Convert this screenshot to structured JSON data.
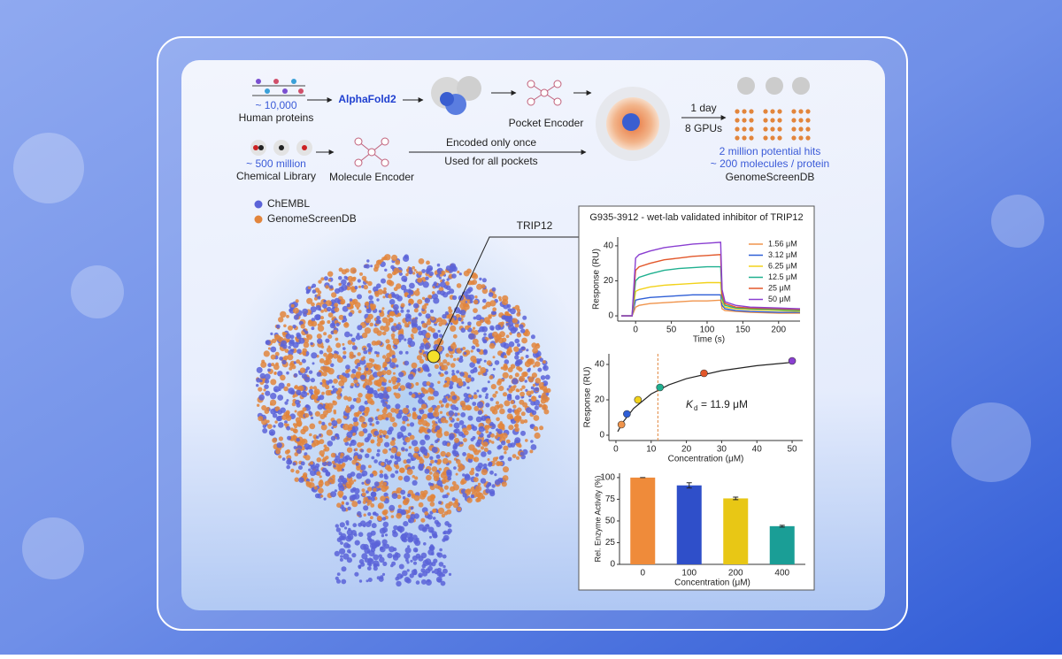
{
  "pipeline": {
    "protein_count": "~ 10,000",
    "protein_label": "Human proteins",
    "folding": "AlphaFold2",
    "pocket_encoder": "Pocket Encoder",
    "time": "1 day",
    "gpus": "8 GPUs",
    "library_count": "~ 500 million",
    "library_label": "Chemical Library",
    "molecule_encoder": "Molecule Encoder",
    "encode_note_1": "Encoded only once",
    "encode_note_2": "Used for all pockets",
    "hits": "2 million potential hits",
    "per_protein": "~ 200 molecules / protein",
    "database": "GenomeScreenDB"
  },
  "embedding": {
    "legend": [
      {
        "name": "ChEMBL",
        "color": "#5b63d8"
      },
      {
        "name": "GenomeScreenDB",
        "color": "#e2853c"
      }
    ],
    "highlight": "TRIP12"
  },
  "panel_title": "G935-3912 - wet-lab validated inhibitor of TRIP12",
  "chart_data": [
    {
      "type": "line",
      "xlabel": "Time (s)",
      "ylabel": "Response (RU)",
      "x": [
        -20,
        -5,
        0,
        5,
        20,
        40,
        60,
        80,
        100,
        119,
        121,
        125,
        140,
        160,
        200,
        230
      ],
      "series": [
        {
          "name": "1.56 μM",
          "color": "#f0944c",
          "values": [
            0,
            0,
            5,
            6,
            7,
            7.5,
            8,
            8.5,
            8.5,
            9,
            4,
            3,
            2.5,
            2,
            1.5,
            1.5
          ]
        },
        {
          "name": "3.12 μM",
          "color": "#2f5fd6",
          "values": [
            0,
            0,
            9,
            9.5,
            10.5,
            11,
            11.5,
            12,
            12,
            12,
            6,
            4,
            3,
            2.5,
            2,
            2
          ]
        },
        {
          "name": "6.25 μM",
          "color": "#f2d21a",
          "values": [
            0,
            0,
            14,
            15,
            16.5,
            17.5,
            18,
            18.5,
            19,
            19,
            8,
            5,
            4,
            3.5,
            3,
            2.5
          ]
        },
        {
          "name": "12.5 μM",
          "color": "#1fb08f",
          "values": [
            0,
            0,
            20,
            22,
            24,
            26,
            27,
            27.5,
            28,
            28,
            10,
            6,
            4.5,
            4,
            3.5,
            3
          ]
        },
        {
          "name": "25 μM",
          "color": "#e2572a",
          "values": [
            0,
            0,
            26,
            28,
            30,
            32,
            33,
            34,
            34.5,
            35,
            12,
            7,
            5,
            4.5,
            4,
            3.5
          ]
        },
        {
          "name": "50 μM",
          "color": "#8a3fd1",
          "values": [
            0,
            0,
            33,
            35,
            37,
            39,
            40,
            41,
            41.5,
            42,
            15,
            8,
            6,
            5,
            4.5,
            4
          ]
        }
      ],
      "xlim": [
        -25,
        230
      ],
      "xticks": [
        0,
        50,
        100,
        150,
        200
      ],
      "ylim": [
        -3,
        45
      ],
      "yticks": [
        0,
        20,
        40
      ]
    },
    {
      "type": "scatter",
      "xlabel": "Concentration (μM)",
      "ylabel": "Response (RU)",
      "x": [
        1.56,
        3.12,
        6.25,
        12.5,
        25,
        50
      ],
      "y": [
        6,
        12,
        20,
        27,
        35,
        42
      ],
      "colors": [
        "#f0944c",
        "#2f5fd6",
        "#f2d21a",
        "#1fb08f",
        "#e2572a",
        "#8a3fd1"
      ],
      "fit": {
        "x": [
          0.5,
          2,
          5,
          10,
          15,
          20,
          30,
          40,
          50
        ],
        "y": [
          2.06,
          7.34,
          15.09,
          23.29,
          28.44,
          31.97,
          36.51,
          39.3,
          41.19
        ]
      },
      "kd_line": 11.9,
      "annotation": {
        "symbol": "K",
        "subscript": "d",
        "text": "= 11.9 μM"
      },
      "xlim": [
        -2,
        53
      ],
      "xticks": [
        0,
        10,
        20,
        30,
        40,
        50
      ],
      "ylim": [
        -3,
        46
      ],
      "yticks": [
        0,
        20,
        40
      ]
    },
    {
      "type": "bar",
      "xlabel": "Concentration (μM)",
      "ylabel": "Rel. Enzyme Activity (%)",
      "categories": [
        "0",
        "100",
        "200",
        "400"
      ],
      "values": [
        100,
        91,
        76,
        44
      ],
      "errors": [
        0,
        3,
        1.5,
        1
      ],
      "colors": [
        "#ef8b3a",
        "#2f4fc9",
        "#e8c715",
        "#1a9e96"
      ],
      "ylim": [
        0,
        105
      ],
      "yticks": [
        0,
        25,
        50,
        75,
        100
      ]
    }
  ]
}
